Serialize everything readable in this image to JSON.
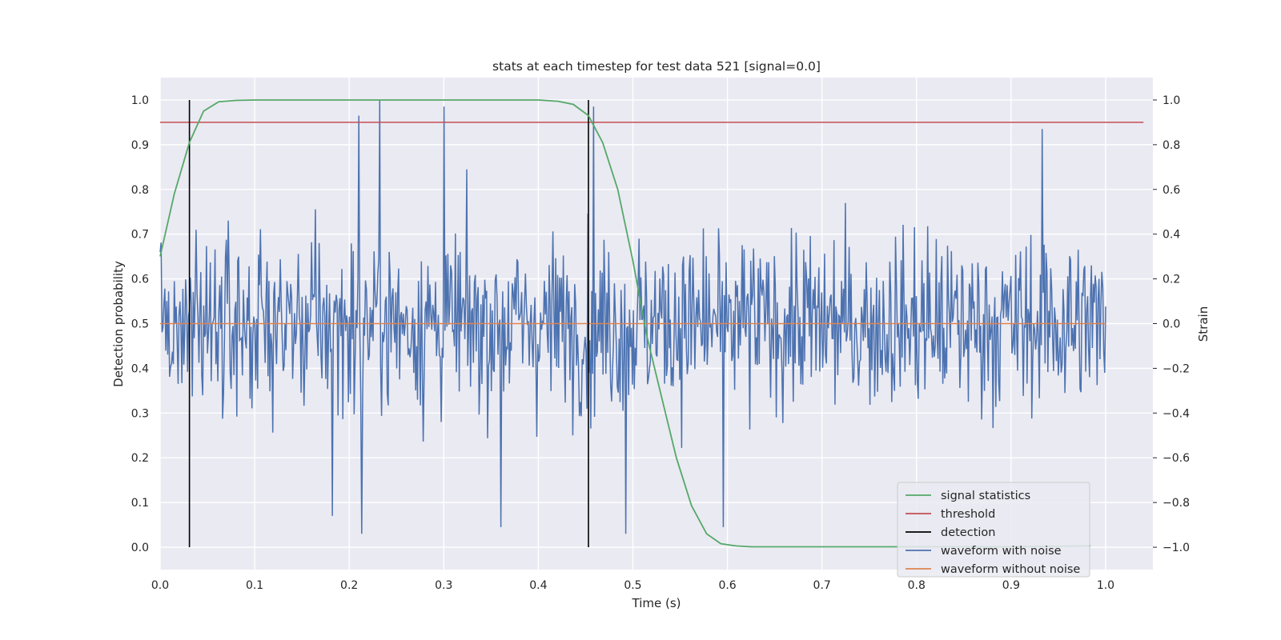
{
  "chart_data": {
    "type": "line",
    "title": "stats at each timestep for test data 521 [signal=0.0]",
    "xlabel": "Time (s)",
    "ylabel_left": "Detection probability",
    "ylabel_right": "Strain",
    "xlim": [
      0.0,
      1.05
    ],
    "ylim_left": [
      -0.05,
      1.05
    ],
    "ylim_right": [
      -1.1,
      1.1
    ],
    "x_ticks": [
      "0.0",
      "0.1",
      "0.2",
      "0.3",
      "0.4",
      "0.5",
      "0.6",
      "0.7",
      "0.8",
      "0.9",
      "1.0"
    ],
    "y_left_ticks": [
      "0.0",
      "0.1",
      "0.2",
      "0.3",
      "0.4",
      "0.5",
      "0.6",
      "0.7",
      "0.8",
      "0.9",
      "1.0"
    ],
    "y_right_ticks": [
      "−1.0",
      "−0.8",
      "−0.6",
      "−0.4",
      "−0.2",
      "0.0",
      "0.2",
      "0.4",
      "0.6",
      "0.8",
      "1.0"
    ],
    "grid": true,
    "legend_position": "lower-right",
    "legend": [
      "signal statistics",
      "threshold",
      "detection",
      "waveform with noise",
      "waveform without noise"
    ],
    "colors": {
      "signal_statistics": "#55a868",
      "threshold": "#c44e52",
      "detection": "#000000",
      "waveform_with_noise": "#4c72b0",
      "waveform_without_noise": "#dd8452",
      "plot_background": "#eaeaf2"
    },
    "series": [
      {
        "name": "signal statistics",
        "axis": "left",
        "x": [
          0.0,
          0.015,
          0.031,
          0.046,
          0.062,
          0.08,
          0.1,
          0.2,
          0.3,
          0.4,
          0.421,
          0.437,
          0.453,
          0.468,
          0.484,
          0.5,
          0.515,
          0.531,
          0.546,
          0.562,
          0.578,
          0.593,
          0.609,
          0.625,
          0.7,
          0.8,
          0.9,
          0.984
        ],
        "values": [
          0.65,
          0.79,
          0.905,
          0.975,
          0.996,
          0.999,
          1.0,
          1.0,
          1.0,
          1.0,
          0.997,
          0.99,
          0.965,
          0.905,
          0.8,
          0.64,
          0.47,
          0.33,
          0.2,
          0.093,
          0.03,
          0.008,
          0.003,
          0.001,
          0.001,
          0.001,
          0.001,
          0.003
        ]
      },
      {
        "name": "threshold",
        "axis": "left",
        "x": [
          0.0,
          1.04
        ],
        "values": [
          0.95,
          0.95
        ]
      },
      {
        "name": "detection",
        "axis": "left",
        "x": [
          0.031,
          0.453
        ],
        "values": [
          0.0,
          1.0
        ],
        "style": "vertical lines"
      },
      {
        "name": "waveform with noise",
        "axis": "right",
        "x_range": [
          0.0,
          1.0
        ],
        "sample_count": 1000,
        "values_range": [
          -1.0,
          1.0
        ],
        "notable_peaks": [
          {
            "x": 0.232,
            "value": 1.0
          },
          {
            "x": 0.3,
            "value": 0.97
          },
          {
            "x": 0.458,
            "value": 0.97
          },
          {
            "x": 0.21,
            "value": 0.93
          },
          {
            "x": 0.933,
            "value": 0.87
          }
        ],
        "notable_troughs": [
          {
            "x": 0.213,
            "value": -0.94
          },
          {
            "x": 0.36,
            "value": -0.91
          },
          {
            "x": 0.492,
            "value": -0.94
          },
          {
            "x": 0.182,
            "value": -0.86
          },
          {
            "x": 0.596,
            "value": -0.91
          }
        ]
      },
      {
        "name": "waveform without noise",
        "axis": "right",
        "x": [
          0.0,
          1.0
        ],
        "values": [
          0.0,
          0.0
        ]
      }
    ]
  }
}
